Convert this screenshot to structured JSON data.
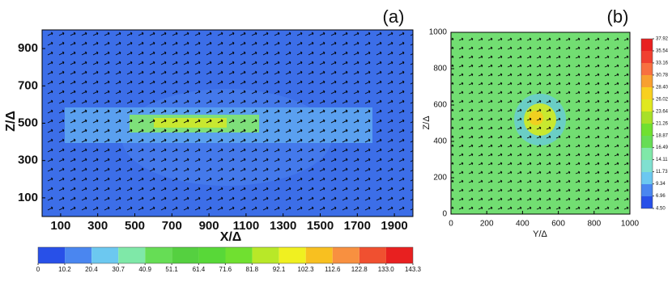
{
  "panels": [
    {
      "type": "contour",
      "label": "(a)",
      "xlabel": "X/Δ",
      "ylabel": "Z/Δ",
      "xlim": [
        0,
        2000
      ],
      "xticks": [
        100,
        300,
        500,
        700,
        900,
        1100,
        1300,
        1500,
        1700,
        1900
      ],
      "ylim": [
        0,
        1000
      ],
      "yticks": [
        100,
        300,
        500,
        700,
        900
      ],
      "colorbar": {
        "ticks": [
          0,
          10.2,
          20.4,
          30.7,
          40.9,
          51.1,
          61.4,
          71.6,
          81.8,
          92.1,
          102.3,
          112.6,
          122.8,
          {
            "value": 133.0,
            "label": "133.0"
          },
          143.3
        ],
        "colors": [
          "#2850e8",
          "#4a86f0",
          "#6cc8f0",
          "#7fe8a8",
          "#66dd55",
          "#55d040",
          "#58d838",
          "#70e030",
          "#b8e828",
          "#f0f020",
          "#f8c020",
          "#f89040",
          "#f05030",
          "#e82020"
        ]
      }
    },
    {
      "type": "contour",
      "label": "(b)",
      "xlabel": "Y/Δ",
      "ylabel": "Z/Δ",
      "xlim": [
        0,
        1000
      ],
      "xticks": [
        0,
        200,
        400,
        600,
        800,
        1000
      ],
      "ylim": [
        0,
        1000
      ],
      "yticks": [
        0,
        200,
        400,
        600,
        800,
        1000
      ],
      "colorbar": {
        "ticks": [
          {
            "value": 4.5,
            "label": "4.50"
          },
          6.96,
          9.34,
          11.73,
          14.11,
          16.49,
          18.87,
          21.26,
          23.64,
          26.02,
          {
            "value": 28.4,
            "label": "28.40"
          },
          30.78,
          33.16,
          35.54,
          37.92
        ],
        "colors": [
          "#2850e8",
          "#4a86f0",
          "#6cc8f0",
          "#80e0d0",
          "#7fe8a8",
          "#66dd55",
          "#70e030",
          "#a8e028",
          "#e0e820",
          "#f8d020",
          "#f8a030",
          "#f87040",
          "#f04030",
          "#e82020"
        ]
      }
    }
  ]
}
